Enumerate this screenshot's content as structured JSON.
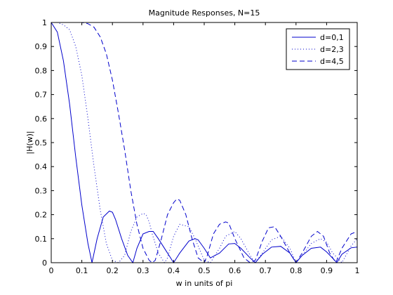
{
  "chart_data": {
    "type": "line",
    "title": "Magnitude Responses, N=15",
    "xlabel": "w in units of pi",
    "ylabel": "|H(w)|",
    "xlim": [
      0,
      1
    ],
    "ylim": [
      0,
      1
    ],
    "xticks": [
      "0",
      "0.1",
      "0.2",
      "0.3",
      "0.4",
      "0.5",
      "0.6",
      "0.7",
      "0.8",
      "0.9",
      "1"
    ],
    "yticks": [
      "0",
      "0.1",
      "0.2",
      "0.3",
      "0.4",
      "0.5",
      "0.6",
      "0.7",
      "0.8",
      "0.9",
      "1"
    ],
    "grid": false,
    "legend_position": "top-right",
    "colors": {
      "series": "#0000cc",
      "axes": "#000000",
      "background": "#ffffff"
    },
    "series": [
      {
        "name": "d=0,1",
        "line_style": "solid",
        "x": [
          0,
          0.02,
          0.04,
          0.06,
          0.08,
          0.1,
          0.12,
          0.1333,
          0.15,
          0.17,
          0.19,
          0.2,
          0.21,
          0.23,
          0.25,
          0.2667,
          0.28,
          0.3,
          0.32,
          0.3333,
          0.35,
          0.38,
          0.4,
          0.42,
          0.45,
          0.47,
          0.48,
          0.5,
          0.52,
          0.55,
          0.58,
          0.6,
          0.62,
          0.65,
          0.667,
          0.69,
          0.72,
          0.75,
          0.78,
          0.8,
          0.82,
          0.85,
          0.88,
          0.9,
          0.93,
          0.9333,
          0.95,
          0.98,
          1.0
        ],
        "y": [
          1,
          0.96,
          0.84,
          0.66,
          0.44,
          0.24,
          0.08,
          0,
          0.1,
          0.19,
          0.215,
          0.21,
          0.18,
          0.1,
          0.03,
          0,
          0.06,
          0.12,
          0.13,
          0.13,
          0.1,
          0.04,
          0,
          0.04,
          0.09,
          0.1,
          0.095,
          0.06,
          0.02,
          0.04,
          0.078,
          0.08,
          0.06,
          0.02,
          0,
          0.035,
          0.065,
          0.068,
          0.04,
          0,
          0.03,
          0.06,
          0.065,
          0.045,
          0.005,
          0,
          0.035,
          0.062,
          0.065
        ]
      },
      {
        "name": "d=2,3",
        "line_style": "dotted",
        "x": [
          0,
          0.02,
          0.04,
          0.06,
          0.08,
          0.1,
          0.12,
          0.14,
          0.16,
          0.18,
          0.2,
          0.22,
          0.24,
          0.25,
          0.26,
          0.28,
          0.3,
          0.31,
          0.32,
          0.33,
          0.35,
          0.37,
          0.38,
          0.4,
          0.42,
          0.45,
          0.47,
          0.5,
          0.52,
          0.55,
          0.57,
          0.6,
          0.62,
          0.65,
          0.667,
          0.69,
          0.72,
          0.75,
          0.78,
          0.8,
          0.82,
          0.85,
          0.88,
          0.9,
          0.92,
          0.95,
          0.98,
          1.0
        ],
        "y": [
          1,
          1,
          0.99,
          0.97,
          0.9,
          0.78,
          0.6,
          0.4,
          0.22,
          0.08,
          0.01,
          0,
          0.03,
          0.08,
          0.13,
          0.19,
          0.205,
          0.2,
          0.17,
          0.12,
          0.04,
          0,
          0.02,
          0.11,
          0.16,
          0.15,
          0.1,
          0.01,
          0,
          0.06,
          0.11,
          0.13,
          0.1,
          0.03,
          0,
          0.04,
          0.095,
          0.11,
          0.06,
          0,
          0.03,
          0.08,
          0.1,
          0.085,
          0.04,
          0,
          0.07,
          0.1
        ]
      },
      {
        "name": "d=4,5",
        "line_style": "dashed",
        "x": [
          0.09,
          0.1,
          0.12,
          0.14,
          0.16,
          0.18,
          0.2,
          0.22,
          0.24,
          0.26,
          0.28,
          0.3,
          0.32,
          0.33,
          0.34,
          0.36,
          0.38,
          0.4,
          0.41,
          0.42,
          0.44,
          0.46,
          0.48,
          0.5,
          0.51,
          0.53,
          0.55,
          0.57,
          0.58,
          0.6,
          0.63,
          0.65,
          0.667,
          0.69,
          0.71,
          0.73,
          0.75,
          0.78,
          0.8,
          0.82,
          0.85,
          0.87,
          0.89,
          0.91,
          0.93,
          0.95,
          0.98,
          1.0
        ],
        "y": [
          1,
          1,
          0.995,
          0.98,
          0.94,
          0.87,
          0.76,
          0.62,
          0.47,
          0.3,
          0.16,
          0.06,
          0.01,
          0,
          0.01,
          0.1,
          0.2,
          0.25,
          0.265,
          0.26,
          0.2,
          0.1,
          0.02,
          0,
          0.03,
          0.12,
          0.16,
          0.17,
          0.165,
          0.1,
          0.02,
          0,
          0.01,
          0.09,
          0.145,
          0.15,
          0.11,
          0.04,
          0,
          0.04,
          0.11,
          0.13,
          0.11,
          0.04,
          0,
          0.06,
          0.12,
          0.13
        ]
      }
    ]
  }
}
